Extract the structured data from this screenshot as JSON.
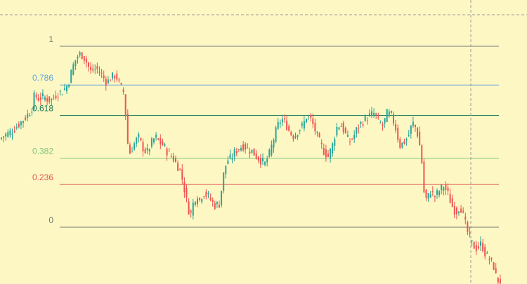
{
  "chart_data": {
    "type": "candlestick",
    "title": "",
    "xlabel": "",
    "ylabel": "",
    "ylim": [
      -0.32,
      1.15
    ],
    "grid": false,
    "fib_levels": [
      {
        "label": "1",
        "value": 1.0,
        "color": "#787878"
      },
      {
        "label": "0.786",
        "value": 0.786,
        "color": "#64a6dc"
      },
      {
        "label": "0.618",
        "value": 0.618,
        "color": "#1e7a55"
      },
      {
        "label": "0.382",
        "value": 0.382,
        "color": "#7fc77c"
      },
      {
        "label": "0.236",
        "value": 0.236,
        "color": "#e05555"
      },
      {
        "label": "0",
        "value": 0.0,
        "color": "#787878"
      }
    ],
    "price_path": [
      [
        0,
        0.48
      ],
      [
        10,
        0.51
      ],
      [
        20,
        0.53
      ],
      [
        30,
        0.57
      ],
      [
        40,
        0.61
      ],
      [
        48,
        0.65
      ],
      [
        52,
        0.73
      ],
      [
        58,
        0.71
      ],
      [
        65,
        0.72
      ],
      [
        75,
        0.7
      ],
      [
        85,
        0.74
      ],
      [
        92,
        0.75
      ],
      [
        100,
        0.79
      ],
      [
        106,
        0.88
      ],
      [
        112,
        0.94
      ],
      [
        118,
        0.96
      ],
      [
        124,
        0.93
      ],
      [
        132,
        0.86
      ],
      [
        140,
        0.88
      ],
      [
        148,
        0.84
      ],
      [
        155,
        0.8
      ],
      [
        162,
        0.83
      ],
      [
        168,
        0.84
      ],
      [
        174,
        0.78
      ],
      [
        180,
        0.74
      ],
      [
        184,
        0.48
      ],
      [
        188,
        0.41
      ],
      [
        194,
        0.46
      ],
      [
        200,
        0.5
      ],
      [
        206,
        0.44
      ],
      [
        212,
        0.41
      ],
      [
        218,
        0.46
      ],
      [
        224,
        0.5
      ],
      [
        230,
        0.47
      ],
      [
        236,
        0.45
      ],
      [
        242,
        0.41
      ],
      [
        248,
        0.39
      ],
      [
        254,
        0.35
      ],
      [
        260,
        0.31
      ],
      [
        266,
        0.2
      ],
      [
        270,
        0.12
      ],
      [
        274,
        0.06
      ],
      [
        280,
        0.17
      ],
      [
        286,
        0.14
      ],
      [
        292,
        0.19
      ],
      [
        300,
        0.17
      ],
      [
        308,
        0.12
      ],
      [
        316,
        0.13
      ],
      [
        320,
        0.27
      ],
      [
        326,
        0.37
      ],
      [
        332,
        0.38
      ],
      [
        338,
        0.42
      ],
      [
        344,
        0.44
      ],
      [
        350,
        0.45
      ],
      [
        356,
        0.43
      ],
      [
        362,
        0.42
      ],
      [
        368,
        0.39
      ],
      [
        374,
        0.37
      ],
      [
        380,
        0.35
      ],
      [
        386,
        0.4
      ],
      [
        392,
        0.48
      ],
      [
        398,
        0.56
      ],
      [
        404,
        0.6
      ],
      [
        410,
        0.57
      ],
      [
        416,
        0.52
      ],
      [
        422,
        0.5
      ],
      [
        428,
        0.54
      ],
      [
        434,
        0.56
      ],
      [
        440,
        0.62
      ],
      [
        446,
        0.59
      ],
      [
        452,
        0.53
      ],
      [
        458,
        0.47
      ],
      [
        464,
        0.42
      ],
      [
        470,
        0.39
      ],
      [
        476,
        0.45
      ],
      [
        482,
        0.55
      ],
      [
        488,
        0.57
      ],
      [
        494,
        0.52
      ],
      [
        500,
        0.47
      ],
      [
        506,
        0.5
      ],
      [
        512,
        0.55
      ],
      [
        518,
        0.58
      ],
      [
        524,
        0.6
      ],
      [
        530,
        0.62
      ],
      [
        536,
        0.63
      ],
      [
        542,
        0.58
      ],
      [
        548,
        0.56
      ],
      [
        554,
        0.63
      ],
      [
        560,
        0.62
      ],
      [
        566,
        0.55
      ],
      [
        572,
        0.45
      ],
      [
        578,
        0.47
      ],
      [
        584,
        0.5
      ],
      [
        590,
        0.58
      ],
      [
        596,
        0.54
      ],
      [
        600,
        0.46
      ],
      [
        604,
        0.34
      ],
      [
        606,
        0.2
      ],
      [
        610,
        0.15
      ],
      [
        616,
        0.2
      ],
      [
        622,
        0.17
      ],
      [
        628,
        0.2
      ],
      [
        634,
        0.23
      ],
      [
        640,
        0.19
      ],
      [
        646,
        0.12
      ],
      [
        652,
        0.08
      ],
      [
        658,
        0.12
      ],
      [
        664,
        0.04
      ],
      [
        670,
        -0.05
      ],
      [
        676,
        -0.1
      ],
      [
        682,
        -0.12
      ],
      [
        688,
        -0.09
      ],
      [
        694,
        -0.15
      ],
      [
        700,
        -0.18
      ],
      [
        706,
        -0.22
      ],
      [
        710,
        -0.29
      ],
      [
        714,
        -0.3
      ]
    ]
  }
}
